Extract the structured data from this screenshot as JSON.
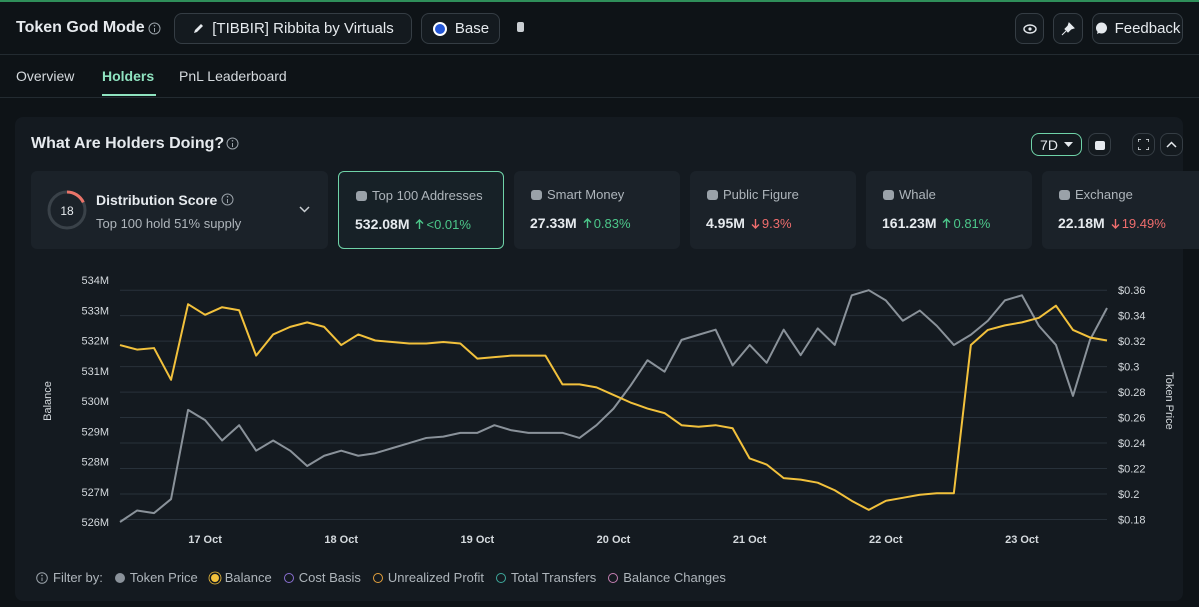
{
  "header": {
    "title": "Token God Mode",
    "token": "[TIBBIR] Ribbita by Virtuals",
    "chain": "Base",
    "feedback": "Feedback"
  },
  "tabs": [
    "Overview",
    "Holders",
    "PnL Leaderboard"
  ],
  "panel": {
    "title": "What Are Holders Doing?",
    "range": "7D"
  },
  "score": {
    "title": "Distribution Score",
    "value": 18,
    "subtitle": "Top 100 hold 51% supply"
  },
  "metrics": [
    {
      "label": "Top 100 Addresses",
      "value": "532.08M",
      "change": "<0.01%",
      "trend": "up"
    },
    {
      "label": "Smart Money",
      "value": "27.33M",
      "change": "0.83%",
      "trend": "up"
    },
    {
      "label": "Public Figure",
      "value": "4.95M",
      "change": "9.3%",
      "trend": "down"
    },
    {
      "label": "Whale",
      "value": "161.23M",
      "change": "0.81%",
      "trend": "up"
    },
    {
      "label": "Exchange",
      "value": "22.18M",
      "change": "19.49%",
      "trend": "down"
    }
  ],
  "chart_data": {
    "type": "line",
    "categories": [
      null,
      null,
      null,
      null,
      null,
      "17 Oct",
      null,
      null,
      null,
      null,
      null,
      null,
      null,
      "18 Oct",
      null,
      null,
      null,
      null,
      null,
      null,
      null,
      "19 Oct",
      null,
      null,
      null,
      null,
      null,
      null,
      null,
      "20 Oct",
      null,
      null,
      null,
      null,
      null,
      null,
      null,
      "21 Oct",
      null,
      null,
      null,
      null,
      null,
      null,
      null,
      "22 Oct",
      null,
      null,
      null,
      null,
      null,
      null,
      null,
      "23 Oct",
      null,
      null,
      null,
      null,
      null
    ],
    "series": [
      {
        "name": "Token Price",
        "color": "#8a929a",
        "axis": "y2",
        "values": [
          0.178,
          0.187,
          0.185,
          0.196,
          0.266,
          0.258,
          0.242,
          0.254,
          0.234,
          0.242,
          0.234,
          0.222,
          0.23,
          0.234,
          0.23,
          0.232,
          0.236,
          0.24,
          0.244,
          0.245,
          0.248,
          0.248,
          0.254,
          0.25,
          0.248,
          0.248,
          0.248,
          0.244,
          0.254,
          0.267,
          0.285,
          0.305,
          0.296,
          0.321,
          0.325,
          0.329,
          0.301,
          0.317,
          0.303,
          0.329,
          0.309,
          0.33,
          0.317,
          0.356,
          0.36,
          0.352,
          0.336,
          0.344,
          0.332,
          0.317,
          0.325,
          0.336,
          0.352,
          0.356,
          0.332,
          0.317,
          0.277,
          0.321,
          0.346
        ]
      },
      {
        "name": "Balance",
        "color": "#f2c13c",
        "values": [
          531.85,
          531.7,
          531.75,
          530.7,
          533.2,
          532.85,
          533.1,
          533.0,
          531.5,
          532.2,
          532.45,
          532.6,
          532.45,
          531.85,
          532.2,
          532.0,
          531.95,
          531.9,
          531.9,
          531.95,
          531.9,
          531.4,
          531.45,
          531.5,
          531.5,
          531.5,
          530.55,
          530.55,
          530.45,
          530.2,
          529.95,
          529.75,
          529.6,
          529.2,
          529.15,
          529.2,
          529.1,
          528.1,
          527.9,
          527.45,
          527.4,
          527.3,
          527.05,
          526.7,
          526.4,
          526.7,
          526.8,
          526.9,
          526.95,
          526.95,
          531.85,
          532.35,
          532.5,
          532.6,
          532.75,
          533.15,
          532.35,
          532.1,
          532.0
        ]
      }
    ],
    "ylabel": "Balance",
    "y2label": "Token Price",
    "ylim": [
      526,
      534
    ],
    "yticks": [
      {
        "value": 526,
        "label": "526M"
      },
      {
        "value": 527,
        "label": "527M"
      },
      {
        "value": 528,
        "label": "528M"
      },
      {
        "value": 529,
        "label": "529M"
      },
      {
        "value": 530,
        "label": "530M"
      },
      {
        "value": 531,
        "label": "531M"
      },
      {
        "value": 532,
        "label": "532M"
      },
      {
        "value": 533,
        "label": "533M"
      },
      {
        "value": 534,
        "label": "534M"
      }
    ],
    "y2lim": [
      0.178,
      0.368
    ],
    "y2ticks": [
      {
        "value": 0.18,
        "label": "$0.18"
      },
      {
        "value": 0.2,
        "label": "$0.2"
      },
      {
        "value": 0.22,
        "label": "$0.22"
      },
      {
        "value": 0.24,
        "label": "$0.24"
      },
      {
        "value": 0.26,
        "label": "$0.26"
      },
      {
        "value": 0.28,
        "label": "$0.28"
      },
      {
        "value": 0.3,
        "label": "$0.3"
      },
      {
        "value": 0.32,
        "label": "$0.32"
      },
      {
        "value": 0.34,
        "label": "$0.34"
      },
      {
        "value": 0.36,
        "label": "$0.36"
      }
    ],
    "grid": true,
    "filter_label": "Filter by:",
    "other_filters": [
      {
        "name": "Cost Basis",
        "color": "#8a6fd1"
      },
      {
        "name": "Unrealized Profit",
        "color": "#e3a03c"
      },
      {
        "name": "Total Transfers",
        "color": "#3ea99c"
      },
      {
        "name": "Balance Changes",
        "color": "#c67fb3"
      }
    ]
  }
}
